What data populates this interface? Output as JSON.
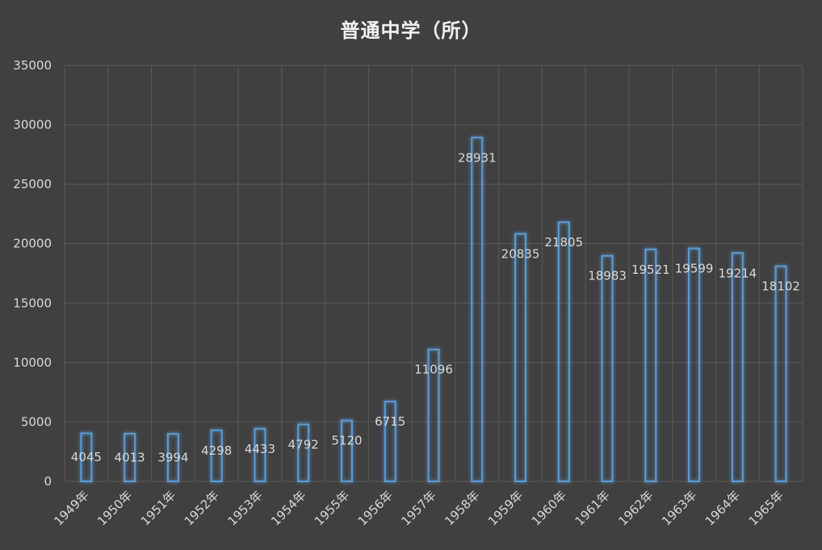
{
  "chart_data": {
    "type": "bar",
    "title": "普通中学（所）",
    "categories": [
      "1949年",
      "1950年",
      "1951年",
      "1952年",
      "1953年",
      "1954年",
      "1955年",
      "1956年",
      "1957年",
      "1958年",
      "1959年",
      "1960年",
      "1961年",
      "1962年",
      "1963年",
      "1964年",
      "1965年"
    ],
    "series": [
      {
        "values": [
          4045,
          4013,
          3994,
          4298,
          4433,
          4792,
          5120,
          6715,
          11096,
          28931,
          20835,
          21805,
          18983,
          19521,
          19599,
          19214,
          18102
        ]
      }
    ],
    "yticks": [
      0,
      5000,
      10000,
      15000,
      20000,
      25000,
      30000,
      35000
    ],
    "ylim": [
      0,
      35000
    ],
    "grid": true,
    "legend": "none",
    "colors": {
      "background": "#404040",
      "bar_stroke": "#5b9bd5",
      "grid": "#5a5a5a",
      "text": "#d9d9d9"
    }
  }
}
